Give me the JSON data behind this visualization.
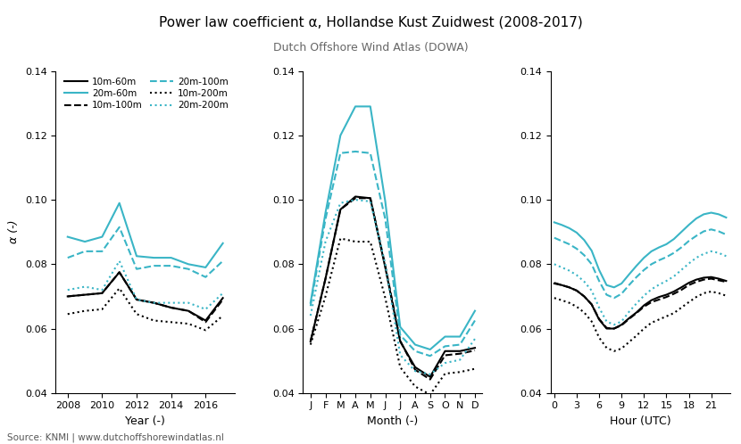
{
  "title": "Power law coefficient α, Hollandse Kust Zuidwest (2008-2017)",
  "subtitle": "Dutch Offshore Wind Atlas (DOWA)",
  "ylabel": "α (-)",
  "source": "Source: KNMI | www.dutchoffshorewindatlas.nl",
  "cyan_color": "#3ab5c6",
  "black_color": "#000000",
  "year_x": [
    2008,
    2009,
    2010,
    2011,
    2012,
    2013,
    2014,
    2015,
    2016,
    2017
  ],
  "year_10m60m": [
    0.07,
    0.0705,
    0.071,
    0.0775,
    0.069,
    0.068,
    0.0665,
    0.0655,
    0.0625,
    0.0695
  ],
  "year_10m100m": [
    0.07,
    0.0705,
    0.071,
    0.0775,
    0.069,
    0.068,
    0.0665,
    0.0655,
    0.062,
    0.069
  ],
  "year_10m200m": [
    0.0645,
    0.0655,
    0.066,
    0.0725,
    0.0645,
    0.0625,
    0.062,
    0.0615,
    0.0595,
    0.064
  ],
  "year_20m60m": [
    0.0885,
    0.087,
    0.0885,
    0.099,
    0.0825,
    0.082,
    0.082,
    0.08,
    0.079,
    0.0865
  ],
  "year_20m100m": [
    0.082,
    0.084,
    0.084,
    0.0915,
    0.0785,
    0.0795,
    0.0795,
    0.0785,
    0.076,
    0.081
  ],
  "year_20m200m": [
    0.072,
    0.073,
    0.072,
    0.081,
    0.069,
    0.068,
    0.068,
    0.068,
    0.066,
    0.071
  ],
  "month_x": [
    1,
    2,
    3,
    4,
    5,
    6,
    7,
    8,
    9,
    10,
    11,
    12
  ],
  "month_labels": [
    "J",
    "F",
    "M",
    "A",
    "M",
    "J",
    "J",
    "A",
    "S",
    "O",
    "N",
    "D"
  ],
  "month_10m60m": [
    0.056,
    0.0755,
    0.097,
    0.101,
    0.1005,
    0.079,
    0.056,
    0.048,
    0.045,
    0.053,
    0.053,
    0.054
  ],
  "month_10m100m": [
    0.056,
    0.0755,
    0.097,
    0.1005,
    0.1005,
    0.0795,
    0.0562,
    0.0472,
    0.0442,
    0.0517,
    0.0522,
    0.0532
  ],
  "month_10m200m": [
    0.055,
    0.07,
    0.088,
    0.087,
    0.087,
    0.0695,
    0.048,
    0.042,
    0.0395,
    0.046,
    0.0465,
    0.0475
  ],
  "month_20m60m": [
    0.068,
    0.096,
    0.12,
    0.129,
    0.129,
    0.0995,
    0.0605,
    0.055,
    0.0535,
    0.0575,
    0.0575,
    0.0655
  ],
  "month_20m100m": [
    0.067,
    0.094,
    0.1145,
    0.115,
    0.1145,
    0.094,
    0.058,
    0.053,
    0.0515,
    0.0545,
    0.055,
    0.0625
  ],
  "month_20m200m": [
    0.064,
    0.087,
    0.099,
    0.1,
    0.0995,
    0.08,
    0.0518,
    0.0468,
    0.0458,
    0.0493,
    0.0503,
    0.0568
  ],
  "hour_x": [
    0,
    1,
    2,
    3,
    4,
    5,
    6,
    7,
    8,
    9,
    10,
    11,
    12,
    13,
    14,
    15,
    16,
    17,
    18,
    19,
    20,
    21,
    22,
    23
  ],
  "hour_10m60m": [
    0.074,
    0.0735,
    0.0728,
    0.0718,
    0.07,
    0.0675,
    0.0628,
    0.06,
    0.06,
    0.0612,
    0.0632,
    0.065,
    0.0672,
    0.0688,
    0.0698,
    0.0705,
    0.0715,
    0.0728,
    0.0742,
    0.0752,
    0.0758,
    0.076,
    0.0755,
    0.0748
  ],
  "hour_10m100m": [
    0.0742,
    0.0735,
    0.0728,
    0.0718,
    0.07,
    0.0675,
    0.063,
    0.0602,
    0.06,
    0.061,
    0.063,
    0.0648,
    0.0668,
    0.0682,
    0.069,
    0.0698,
    0.0708,
    0.072,
    0.0735,
    0.0745,
    0.0752,
    0.0755,
    0.075,
    0.0745
  ],
  "hour_10m200m": [
    0.0695,
    0.0688,
    0.068,
    0.0668,
    0.065,
    0.0622,
    0.0572,
    0.054,
    0.053,
    0.0538,
    0.0558,
    0.0578,
    0.06,
    0.0618,
    0.0628,
    0.0638,
    0.0648,
    0.0665,
    0.0682,
    0.0698,
    0.071,
    0.0715,
    0.071,
    0.0702
  ],
  "hour_20m60m": [
    0.093,
    0.0922,
    0.0912,
    0.0898,
    0.0875,
    0.0842,
    0.0782,
    0.0735,
    0.0728,
    0.074,
    0.0768,
    0.0795,
    0.082,
    0.084,
    0.0852,
    0.0862,
    0.0878,
    0.09,
    0.0922,
    0.0942,
    0.0955,
    0.096,
    0.0955,
    0.0945
  ],
  "hour_20m100m": [
    0.0882,
    0.0872,
    0.0862,
    0.0848,
    0.0828,
    0.08,
    0.0748,
    0.0705,
    0.0695,
    0.0708,
    0.0735,
    0.076,
    0.0782,
    0.08,
    0.0812,
    0.0822,
    0.0835,
    0.0852,
    0.0872,
    0.0888,
    0.0902,
    0.0908,
    0.0902,
    0.0892
  ],
  "hour_20m200m": [
    0.08,
    0.079,
    0.078,
    0.0766,
    0.0746,
    0.0718,
    0.0665,
    0.0622,
    0.0612,
    0.0622,
    0.0652,
    0.0678,
    0.0702,
    0.0722,
    0.0736,
    0.0748,
    0.0762,
    0.0782,
    0.0802,
    0.082,
    0.0832,
    0.084,
    0.0835,
    0.0825
  ],
  "ylim": [
    0.04,
    0.14
  ],
  "yticks": [
    0.04,
    0.06,
    0.08,
    0.1,
    0.12,
    0.14
  ],
  "year_xticks": [
    2008,
    2010,
    2012,
    2014,
    2016
  ],
  "hour_xticks": [
    0,
    3,
    6,
    9,
    12,
    15,
    18,
    21
  ]
}
